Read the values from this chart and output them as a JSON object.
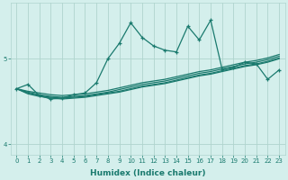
{
  "xlabel": "Humidex (Indice chaleur)",
  "ylabel": "",
  "background_color": "#d4efec",
  "line_color": "#1a7a6e",
  "grid_color": "#b0d4ce",
  "x_values": [
    0,
    1,
    2,
    3,
    4,
    5,
    6,
    7,
    8,
    9,
    10,
    11,
    12,
    13,
    14,
    15,
    16,
    17,
    18,
    19,
    20,
    21,
    22,
    23
  ],
  "ylim": [
    3.88,
    5.65
  ],
  "xlim": [
    -0.5,
    23.5
  ],
  "yticks": [
    4,
    5
  ],
  "xticks": [
    0,
    1,
    2,
    3,
    4,
    5,
    6,
    7,
    8,
    9,
    10,
    11,
    12,
    13,
    14,
    15,
    16,
    17,
    18,
    19,
    20,
    21,
    22,
    23
  ],
  "band_series": [
    [
      4.65,
      4.62,
      4.6,
      4.58,
      4.57,
      4.58,
      4.59,
      4.61,
      4.63,
      4.66,
      4.69,
      4.72,
      4.74,
      4.76,
      4.79,
      4.82,
      4.85,
      4.87,
      4.9,
      4.93,
      4.96,
      4.98,
      5.01,
      5.05
    ],
    [
      4.65,
      4.61,
      4.58,
      4.56,
      4.55,
      4.56,
      4.57,
      4.59,
      4.61,
      4.64,
      4.67,
      4.7,
      4.72,
      4.74,
      4.77,
      4.8,
      4.83,
      4.85,
      4.88,
      4.91,
      4.94,
      4.96,
      4.99,
      5.03
    ],
    [
      4.65,
      4.6,
      4.57,
      4.55,
      4.54,
      4.55,
      4.56,
      4.58,
      4.6,
      4.62,
      4.65,
      4.68,
      4.7,
      4.72,
      4.75,
      4.78,
      4.81,
      4.83,
      4.86,
      4.89,
      4.92,
      4.94,
      4.97,
      5.01
    ],
    [
      4.65,
      4.59,
      4.56,
      4.54,
      4.53,
      4.54,
      4.55,
      4.57,
      4.59,
      4.61,
      4.64,
      4.67,
      4.69,
      4.71,
      4.74,
      4.77,
      4.8,
      4.82,
      4.85,
      4.88,
      4.91,
      4.93,
      4.96,
      5.0
    ]
  ],
  "main_series": [
    4.65,
    4.7,
    4.57,
    4.53,
    4.54,
    4.58,
    4.6,
    4.72,
    5.0,
    5.18,
    5.42,
    5.25,
    5.15,
    5.1,
    5.08,
    5.38,
    5.22,
    5.45,
    4.88,
    4.9,
    4.96,
    4.94,
    4.76,
    4.87
  ]
}
